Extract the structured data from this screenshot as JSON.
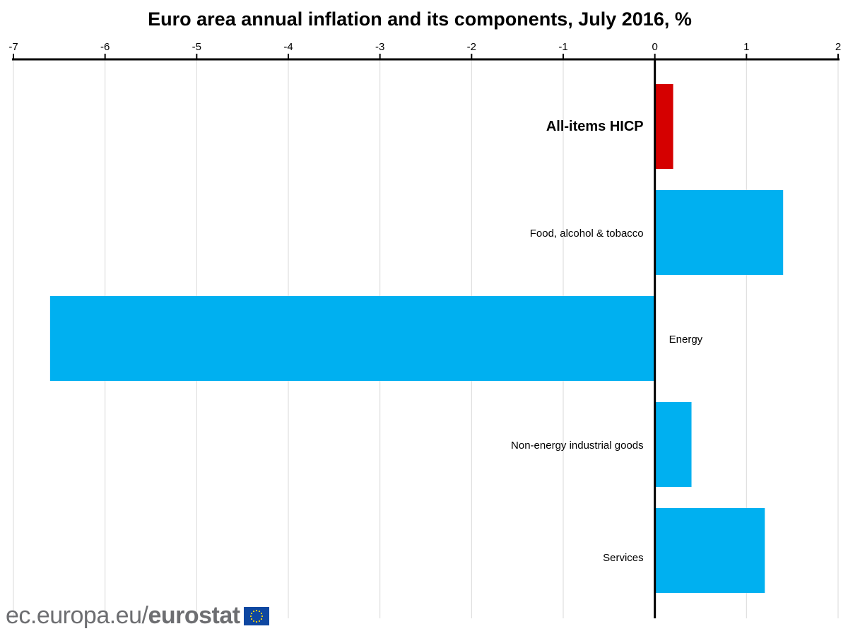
{
  "logo_text": {
    "site": "ec.europa.eu/",
    "brand": "eurostat"
  },
  "chart_data": {
    "type": "bar",
    "orientation": "horizontal",
    "title": "Euro area annual inflation and its components, July 2016, %",
    "categories": [
      "All-items HICP",
      "Food, alcohol & tobacco",
      "Energy",
      "Non-energy industrial goods",
      "Services"
    ],
    "values": [
      0.2,
      1.4,
      -6.6,
      0.4,
      1.2
    ],
    "highlight": [
      true,
      false,
      false,
      false,
      false
    ],
    "colors": {
      "highlight": "#d50000",
      "default": "#00b0f0"
    },
    "xlim": [
      -7,
      2
    ],
    "xticks": [
      "-7",
      "-6",
      "-5",
      "-4",
      "-3",
      "-2",
      "-1",
      "0",
      "1",
      "2"
    ],
    "axis_position": "top",
    "grid": true,
    "xlabel": "",
    "ylabel": ""
  }
}
